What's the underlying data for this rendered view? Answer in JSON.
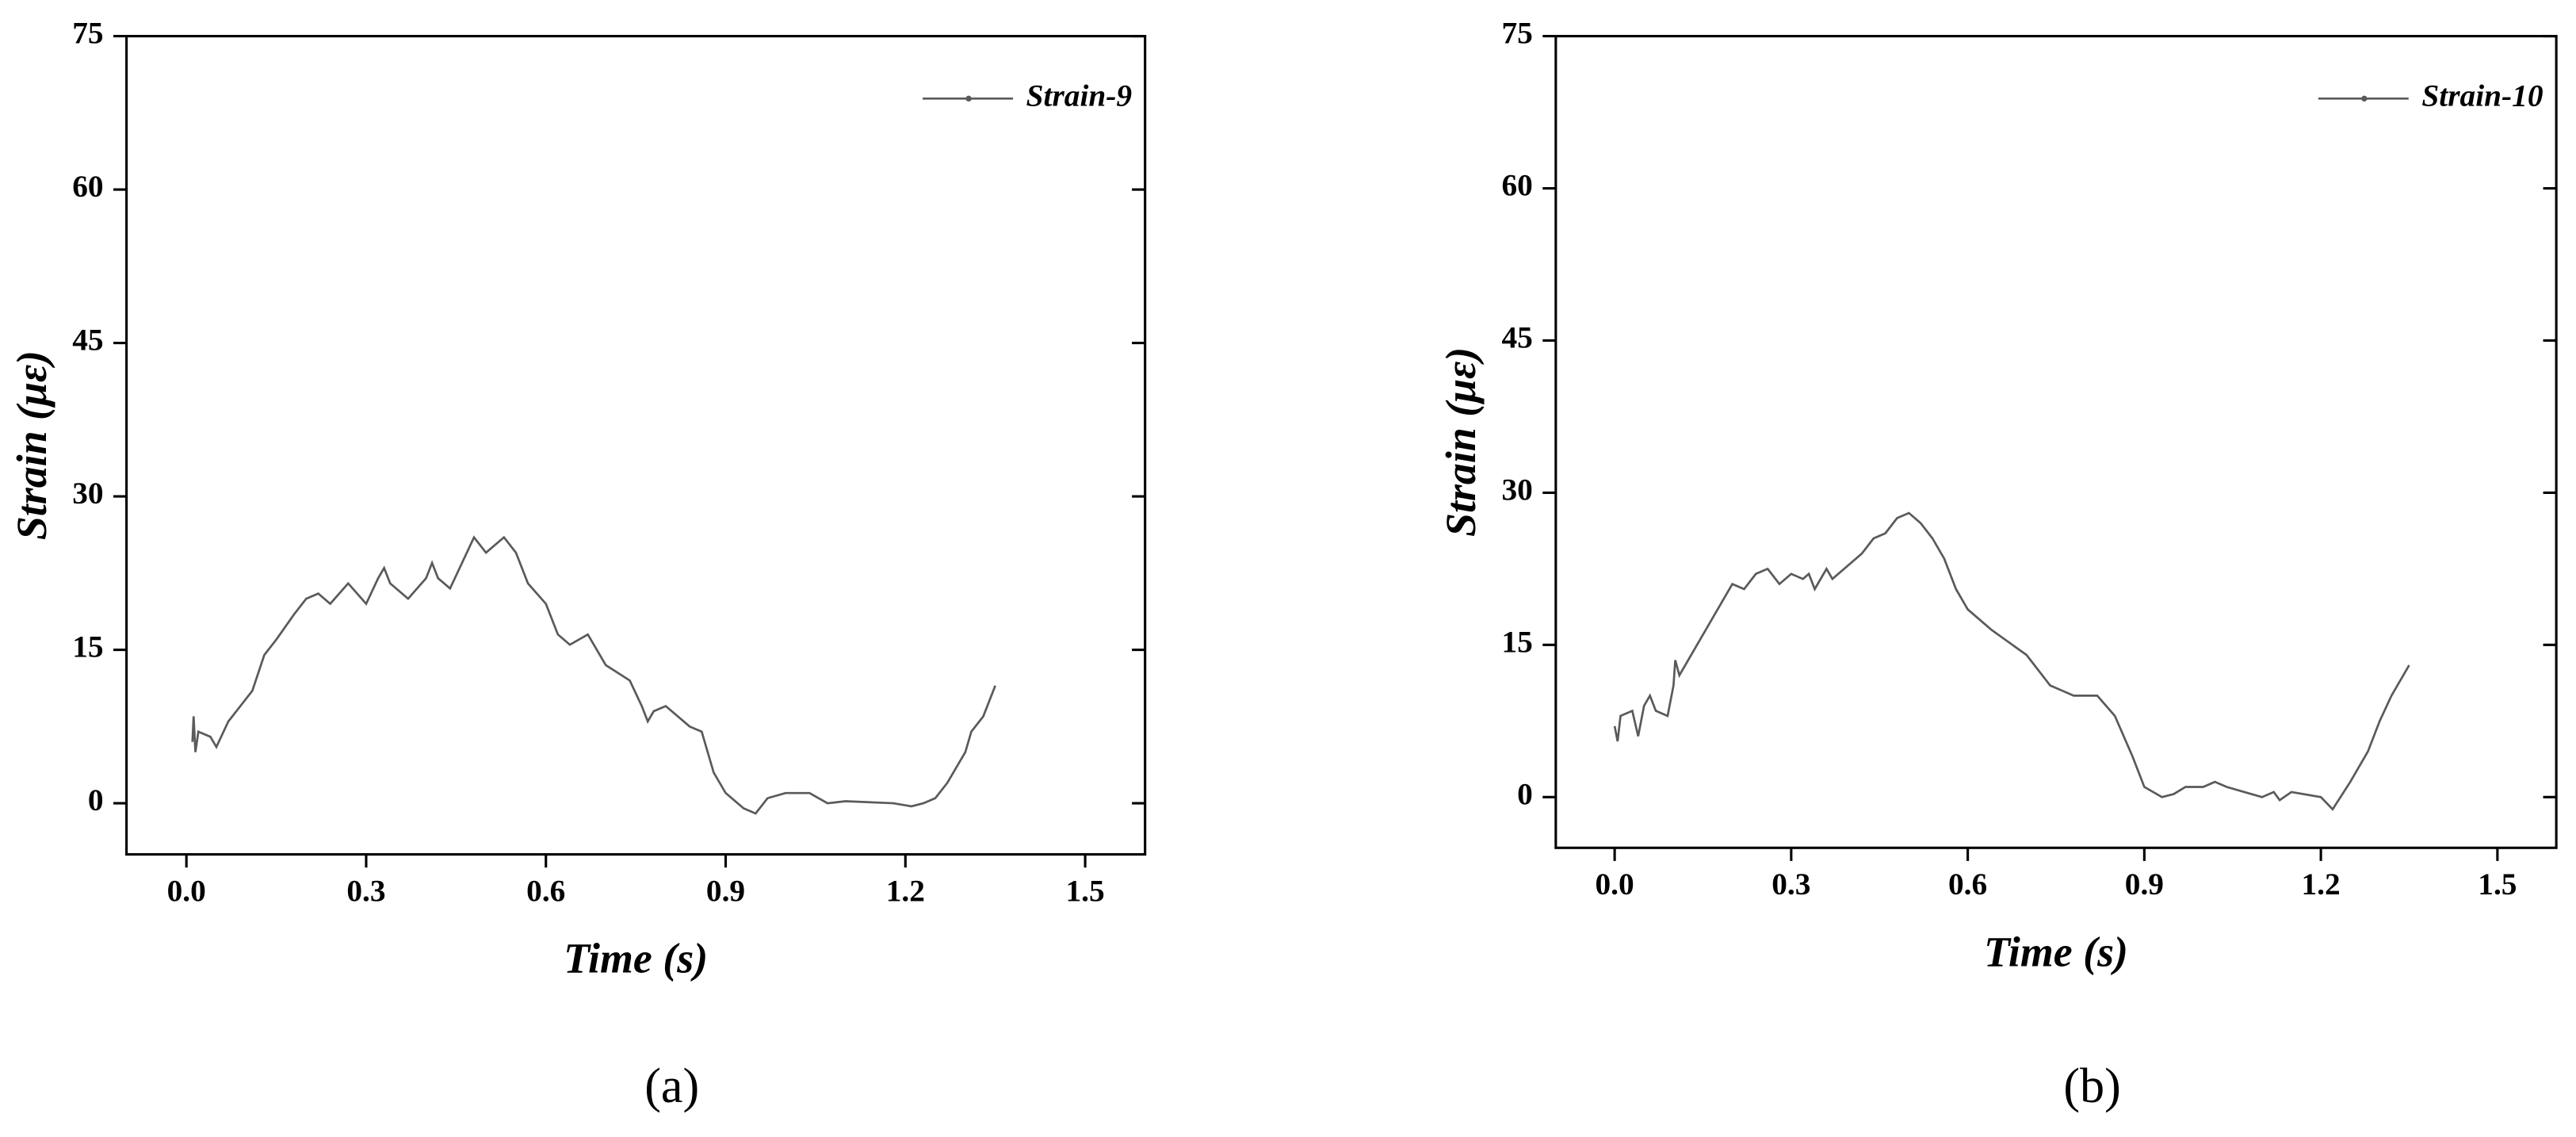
{
  "chart_data": [
    {
      "type": "line",
      "label": "(a)",
      "xlabel": "Time (s)",
      "ylabel": "Strain (με)",
      "xlim": [
        -0.1,
        1.6
      ],
      "ylim": [
        -5,
        75
      ],
      "xticks": [
        {
          "value": 0,
          "label": "0.0"
        },
        0.3,
        0.6,
        0.9,
        1.2,
        1.5
      ],
      "yticks": [
        0,
        15,
        30,
        45,
        60,
        75
      ],
      "legend": "upper right",
      "x": [
        0.01,
        0.012,
        0.015,
        0.02,
        0.04,
        0.05,
        0.07,
        0.09,
        0.11,
        0.13,
        0.15,
        0.18,
        0.2,
        0.22,
        0.24,
        0.27,
        0.3,
        0.32,
        0.33,
        0.34,
        0.36,
        0.37,
        0.4,
        0.41,
        0.42,
        0.44,
        0.46,
        0.48,
        0.5,
        0.53,
        0.55,
        0.57,
        0.6,
        0.62,
        0.64,
        0.67,
        0.7,
        0.74,
        0.76,
        0.77,
        0.78,
        0.8,
        0.84,
        0.86,
        0.88,
        0.9,
        0.93,
        0.95,
        0.97,
        1.0,
        1.04,
        1.07,
        1.1,
        1.18,
        1.21,
        1.23,
        1.25,
        1.27,
        1.3,
        1.31,
        1.33,
        1.35
      ],
      "series": [
        {
          "name": "Strain-9",
          "color": "#5a5a5a",
          "values": [
            6,
            8.5,
            5,
            7,
            6.5,
            5.5,
            8,
            9.5,
            11,
            14.5,
            16,
            18.5,
            20,
            20.5,
            19.5,
            21.5,
            19.5,
            22,
            23,
            21.5,
            20.5,
            20,
            22,
            23.5,
            22,
            21,
            23.5,
            26,
            24.5,
            26,
            24.5,
            21.5,
            19.5,
            16.5,
            15.5,
            16.5,
            13.5,
            12,
            9.5,
            8,
            9,
            9.5,
            7.5,
            7,
            3,
            1,
            -0.5,
            -1,
            0.5,
            1,
            1,
            0,
            0.2,
            0,
            -0.3,
            0,
            0.5,
            2,
            5,
            7,
            8.5,
            11.5
          ]
        }
      ]
    },
    {
      "type": "line",
      "label": "(b)",
      "xlabel": "Time (s)",
      "ylabel": "Strain (με)",
      "xlim": [
        -0.1,
        1.6
      ],
      "ylim": [
        -5,
        75
      ],
      "xticks": [
        {
          "value": 0,
          "label": "0.0"
        },
        0.3,
        0.6,
        0.9,
        1.2,
        1.5
      ],
      "yticks": [
        0,
        15,
        30,
        45,
        60,
        75
      ],
      "legend": "upper right",
      "x": [
        0.0,
        0.005,
        0.01,
        0.03,
        0.04,
        0.05,
        0.06,
        0.07,
        0.09,
        0.1,
        0.103,
        0.11,
        0.14,
        0.17,
        0.2,
        0.22,
        0.24,
        0.26,
        0.28,
        0.3,
        0.32,
        0.33,
        0.34,
        0.36,
        0.37,
        0.4,
        0.42,
        0.44,
        0.46,
        0.48,
        0.5,
        0.52,
        0.54,
        0.56,
        0.58,
        0.6,
        0.64,
        0.7,
        0.74,
        0.76,
        0.78,
        0.82,
        0.85,
        0.88,
        0.9,
        0.93,
        0.95,
        0.97,
        1.0,
        1.02,
        1.04,
        1.07,
        1.1,
        1.12,
        1.13,
        1.15,
        1.2,
        1.22,
        1.25,
        1.28,
        1.3,
        1.32,
        1.35
      ],
      "series": [
        {
          "name": "Strain-10",
          "color": "#5a5a5a",
          "values": [
            7,
            5.5,
            8,
            8.5,
            6,
            9,
            10,
            8.5,
            8,
            11,
            13.5,
            12,
            15,
            18,
            21,
            20.5,
            22,
            22.5,
            21,
            22,
            21.5,
            22,
            20.5,
            22.5,
            21.5,
            23,
            24,
            25.5,
            26,
            27.5,
            28,
            27,
            25.5,
            23.5,
            20.5,
            18.5,
            16.5,
            14,
            11,
            10.5,
            10,
            10,
            8,
            4,
            1,
            0,
            0.3,
            1,
            1,
            1.5,
            1,
            0.5,
            0,
            0.5,
            -0.3,
            0.5,
            0,
            -1.2,
            1.5,
            4.5,
            7.5,
            10,
            13
          ]
        }
      ]
    }
  ]
}
